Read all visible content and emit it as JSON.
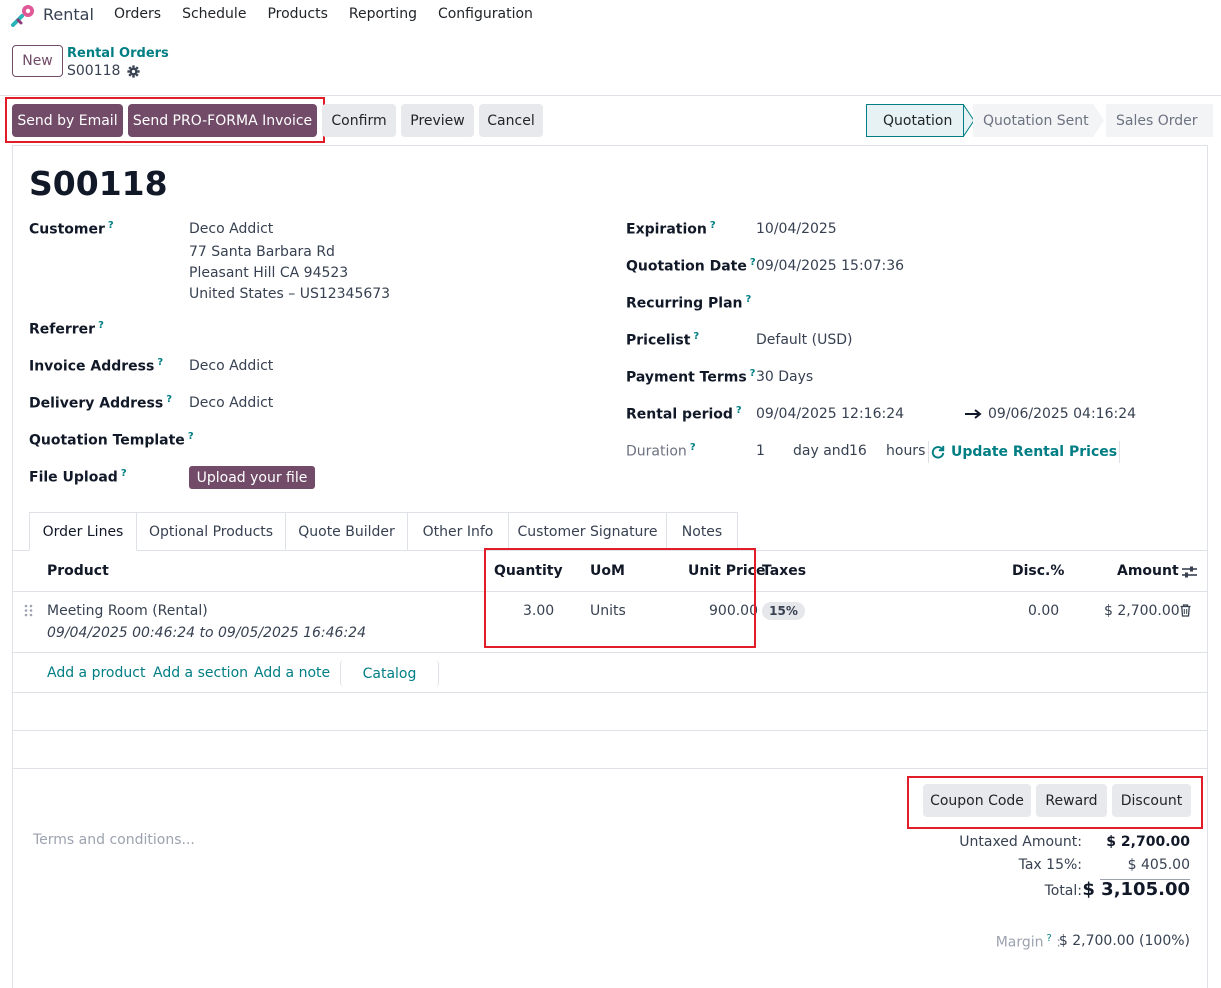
{
  "nav": {
    "app_name": "Rental",
    "menu": [
      "Orders",
      "Schedule",
      "Products",
      "Reporting",
      "Configuration"
    ]
  },
  "control": {
    "new_label": "New",
    "breadcrumb_parent": "Rental Orders",
    "breadcrumb_current": "S00118"
  },
  "actions": {
    "send_email": "Send by Email",
    "send_proforma": "Send PRO-FORMA Invoice",
    "confirm": "Confirm",
    "preview": "Preview",
    "cancel": "Cancel"
  },
  "status": {
    "stages": [
      "Quotation",
      "Quotation Sent",
      "Sales Order"
    ],
    "active": "Quotation"
  },
  "form": {
    "title": "S00118",
    "left": {
      "customer_label": "Customer",
      "customer_name": "Deco Addict",
      "customer_addr1": "77 Santa Barbara Rd",
      "customer_addr2": "Pleasant Hill CA 94523",
      "customer_addr3": "United States – US12345673",
      "referrer_label": "Referrer",
      "invoice_label": "Invoice Address",
      "invoice_value": "Deco Addict",
      "delivery_label": "Delivery Address",
      "delivery_value": "Deco Addict",
      "template_label": "Quotation Template",
      "file_label": "File Upload",
      "upload_btn": "Upload your file"
    },
    "right": {
      "expiration_label": "Expiration",
      "expiration_value": "10/04/2025",
      "qdate_label": "Quotation Date",
      "qdate_value": "09/04/2025 15:07:36",
      "recurring_label": "Recurring Plan",
      "pricelist_label": "Pricelist",
      "pricelist_value": "Default (USD)",
      "payment_label": "Payment Terms",
      "payment_value": "30 Days",
      "rental_label": "Rental period",
      "rental_start": "09/04/2025 12:16:24",
      "rental_end": "09/06/2025 04:16:24",
      "duration_label": "Duration",
      "duration_days": "1",
      "duration_days_unit": "day and",
      "duration_hours": "16",
      "duration_hours_unit": "hours",
      "update_prices": "Update Rental Prices"
    },
    "help_mark": "?"
  },
  "tabs": [
    "Order Lines",
    "Optional Products",
    "Quote Builder",
    "Other Info",
    "Customer Signature",
    "Notes"
  ],
  "lines": {
    "headers": {
      "product": "Product",
      "quantity": "Quantity",
      "uom": "UoM",
      "unit_price": "Unit Price",
      "taxes": "Taxes",
      "disc": "Disc.%",
      "amount": "Amount"
    },
    "row": {
      "product": "Meeting Room (Rental)",
      "period": "09/04/2025 00:46:24 to 09/05/2025 16:46:24",
      "quantity": "3.00",
      "uom": "Units",
      "unit_price": "900.00",
      "tax": "15%",
      "disc": "0.00",
      "amount": "$ 2,700.00"
    },
    "add_product": "Add a product",
    "add_section": "Add a section",
    "add_note": "Add a note",
    "catalog": "Catalog"
  },
  "promo": {
    "coupon": "Coupon Code",
    "reward": "Reward",
    "discount": "Discount"
  },
  "terms_placeholder": "Terms and conditions...",
  "totals": {
    "untaxed_label": "Untaxed Amount:",
    "untaxed_value": "$ 2,700.00",
    "tax_label": "Tax 15%:",
    "tax_value": "$ 405.00",
    "total_label": "Total:",
    "total_value": "$ 3,105.00",
    "margin_label": "Margin",
    "margin_value": "$ 2,700.00 (100%)"
  },
  "colors": {
    "brand": "#714B67",
    "accent": "#017E84",
    "highlight": "#e11d2a"
  },
  "icons": [
    "rental-logo-icon",
    "gear-icon",
    "refresh-icon",
    "arrow-right-icon",
    "drag-handle-icon",
    "trash-icon",
    "column-settings-icon"
  ]
}
